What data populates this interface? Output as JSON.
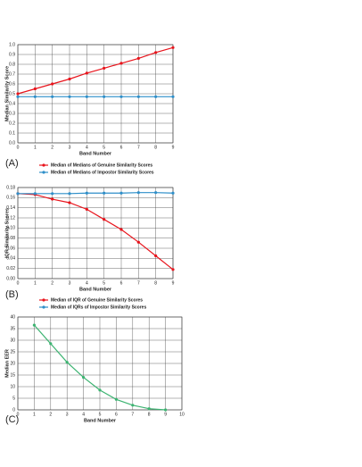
{
  "chart_data": [
    {
      "type": "line",
      "panel_label": "(A)",
      "x_label": "Band Number",
      "y_label": "Median Similarity Score",
      "x": [
        0,
        1,
        2,
        3,
        4,
        5,
        6,
        7,
        8,
        9
      ],
      "xlim": [
        0,
        9
      ],
      "xticks": [
        0,
        1,
        2,
        3,
        4,
        5,
        6,
        7,
        8,
        9
      ],
      "ylim": [
        0,
        1
      ],
      "yticks": [
        {
          "value": 0,
          "label": "0.0"
        },
        0.1,
        0.2,
        0.3,
        0.4,
        0.5,
        0.6,
        0.7,
        0.8,
        0.9,
        {
          "value": 1,
          "label": "1.0"
        }
      ],
      "grid": true,
      "series": [
        {
          "name": "Median of Medians of Genuine Similarity Scores",
          "color": "#e8141c",
          "values": [
            0.5,
            0.55,
            0.6,
            0.65,
            0.71,
            0.76,
            0.81,
            0.86,
            0.92,
            0.97
          ]
        },
        {
          "name": "Median of Medians of Impostor Similarity Scores",
          "color": "#2e8fc9",
          "values": [
            0.47,
            0.47,
            0.47,
            0.47,
            0.47,
            0.47,
            0.47,
            0.47,
            0.47,
            0.47
          ]
        }
      ]
    },
    {
      "type": "line",
      "panel_label": "(B)",
      "x_label": "Band Number",
      "y_label": "IQR Similarity Scores",
      "x": [
        0,
        1,
        2,
        3,
        4,
        5,
        6,
        7,
        8,
        9
      ],
      "xlim": [
        0,
        9
      ],
      "xticks": [
        0,
        1,
        2,
        3,
        4,
        5,
        6,
        7,
        8,
        9
      ],
      "ylim": [
        0,
        0.18
      ],
      "yticks": [
        {
          "value": 0,
          "label": "0.00"
        },
        {
          "value": 0.02,
          "label": "0.02"
        },
        {
          "value": 0.04,
          "label": "0.04"
        },
        {
          "value": 0.06,
          "label": "0.06"
        },
        {
          "value": 0.08,
          "label": "0.08"
        },
        {
          "value": 0.1,
          "label": "0.10"
        },
        {
          "value": 0.12,
          "label": "0.12"
        },
        {
          "value": 0.14,
          "label": "0.14"
        },
        {
          "value": 0.16,
          "label": "0.16"
        },
        {
          "value": 0.18,
          "label": "0.18"
        }
      ],
      "grid": true,
      "series": [
        {
          "name": "Median of IQR of Genuine Similarity Scores",
          "color": "#e8141c",
          "values": [
            0.168,
            0.166,
            0.157,
            0.15,
            0.137,
            0.117,
            0.097,
            0.072,
            0.045,
            0.018
          ]
        },
        {
          "name": "Median of IQRs of Impostor Similarity Scores",
          "color": "#2e8fc9",
          "values": [
            0.168,
            0.168,
            0.168,
            0.168,
            0.169,
            0.169,
            0.169,
            0.17,
            0.17,
            0.169
          ]
        }
      ]
    },
    {
      "type": "line",
      "panel_label": "(C)",
      "x_label": "Band Number",
      "y_label": "Median EER",
      "x": [
        1,
        2,
        3,
        4,
        5,
        6,
        7,
        8,
        9
      ],
      "xlim": [
        0,
        10
      ],
      "xticks": [
        0,
        1,
        2,
        3,
        4,
        5,
        6,
        7,
        8,
        9,
        10
      ],
      "ylim": [
        0,
        40
      ],
      "yticks": [
        0,
        5,
        10,
        15,
        20,
        25,
        30,
        35,
        40
      ],
      "grid": true,
      "color": "#3cb371",
      "values": [
        36.5,
        28.5,
        20.5,
        14,
        8.5,
        4.5,
        2,
        0.5,
        0
      ]
    }
  ]
}
